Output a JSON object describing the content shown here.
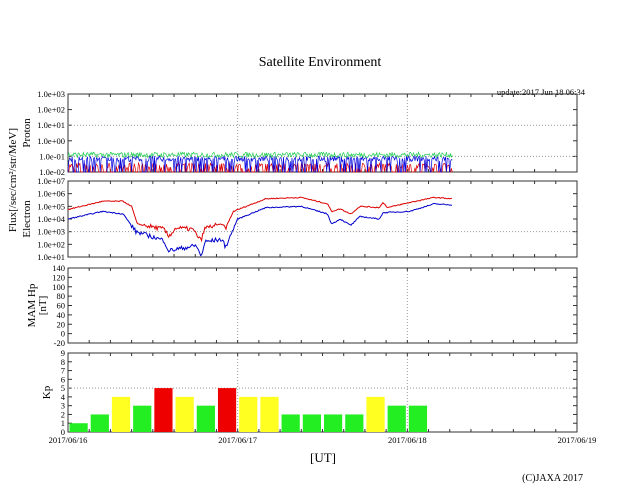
{
  "chart_data": [
    {
      "type": "line",
      "title": "Satellite Environment",
      "update": "update:2017 Jun 18 06:34",
      "shared_ylabel": "Flux[/sec/cm²/str/MeV]",
      "xlabel": "[UT]",
      "x_unit": "hours since 2017/06/16 00:00",
      "xlim": [
        0,
        72
      ],
      "x_tick_labels": [
        "2017/06/16",
        "2017/06/17",
        "2017/06/18",
        "2017/06/19"
      ],
      "copyright": "(C)JAXA 2017",
      "panels": [
        {
          "name": "proton",
          "ylabel": "Proton",
          "scale": "log",
          "ylim_log10": [
            -2,
            3
          ],
          "y_tick_labels": [
            "1.0e+03",
            "1.0e+02",
            "1.0e+01",
            "1.0e+00",
            "1.0e-01",
            "1.0e-02"
          ],
          "series": [
            {
              "name": "green",
              "color": "#22cc55",
              "level_log10": -0.9,
              "x_end": 54.4
            },
            {
              "name": "blue",
              "color": "#0000dd",
              "level_log10": -1.15,
              "x_end": 54.4
            },
            {
              "name": "red",
              "color": "#dd0000",
              "level_log10": -1.6,
              "x_end": 54.4
            }
          ]
        },
        {
          "name": "electron",
          "ylabel": "Electron",
          "scale": "log",
          "ylim_log10": [
            1,
            7
          ],
          "y_tick_labels": [
            "1.0e+07",
            "1.0e+06",
            "1.0e+05",
            "1.0e+04",
            "1.0e+03",
            "1.0e+02",
            "1.0e+01"
          ],
          "series": [
            {
              "name": "red",
              "color": "#dd0000",
              "x": [
                0,
                4.9,
                7.8,
                9,
                9.8,
                13.6,
                14.2,
                15.3,
                17.6,
                18.8,
                19.4,
                21.7,
                22.3,
                23.4,
                25.2,
                28,
                33,
                36.7,
                37.3,
                38.5,
                40,
                41.3,
                44,
                44.6,
                45.2,
                48.3,
                51.8,
                54.4
              ],
              "y_log10": [
                4.75,
                5.4,
                5.4,
                5.0,
                3.6,
                3.2,
                2.6,
                3.3,
                3.2,
                2.3,
                3.3,
                3.6,
                3.3,
                4.6,
                5.0,
                5.6,
                5.7,
                5.2,
                4.6,
                4.8,
                4.4,
                5.0,
                4.9,
                5.3,
                4.9,
                5.3,
                5.7,
                5.6
              ]
            },
            {
              "name": "blue",
              "color": "#0000cc",
              "x": [
                0,
                4.9,
                7.8,
                9.6,
                13.6,
                14.2,
                18.2,
                18.8,
                19.4,
                21.7,
                22.3,
                24,
                28,
                33,
                36.7,
                37.3,
                38.5,
                40,
                41.3,
                44,
                44.6,
                48.3,
                51.8,
                54.4
              ],
              "y_log10": [
                4.0,
                4.6,
                4.4,
                3.0,
                2.3,
                1.5,
                1.9,
                1.0,
                2.2,
                2.4,
                1.8,
                4.0,
                4.9,
                5.0,
                4.4,
                3.6,
                4.0,
                3.5,
                4.2,
                4.0,
                4.5,
                4.6,
                5.2,
                5.1
              ]
            }
          ]
        },
        {
          "name": "mam_hp",
          "ylabel": "MAM Hp",
          "ylabel2": "[nT]",
          "scale": "linear",
          "ylim": [
            -20,
            140
          ],
          "y_tick_labels": [
            "140",
            "120",
            "100",
            "80",
            "60",
            "40",
            "20",
            "0",
            "-20"
          ],
          "series": []
        },
        {
          "name": "kp",
          "type": "bar",
          "ylabel": "Kp",
          "ylim": [
            0,
            9
          ],
          "y_tick_labels": [
            "9",
            "8",
            "7",
            "6",
            "5",
            "4",
            "3",
            "2",
            "1",
            "0"
          ],
          "bar_hours": 3,
          "values": [
            1,
            2,
            4,
            3,
            5,
            4,
            3,
            5,
            4,
            4,
            2,
            2,
            2,
            2,
            4,
            3,
            3
          ],
          "colors": {
            "low": "#22ee22",
            "moderate": "#ffff22",
            "high": "#ee0000"
          }
        }
      ]
    }
  ]
}
